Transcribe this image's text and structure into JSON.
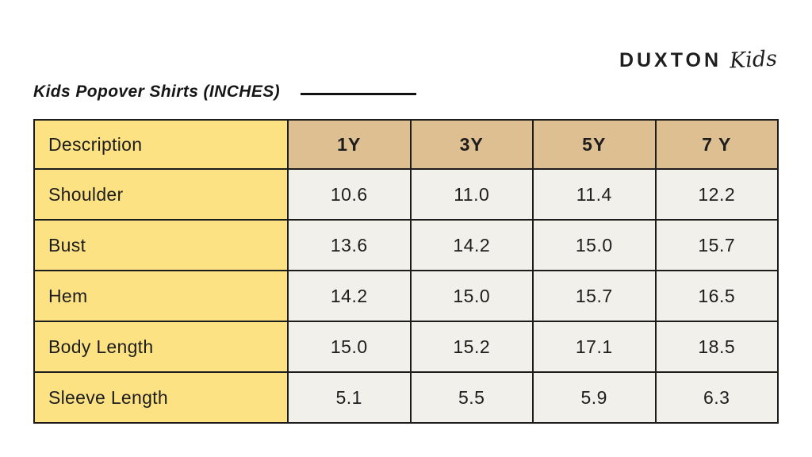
{
  "logo": {
    "brand": "DUXTON",
    "sub": "Kids"
  },
  "title": "Kids Popover Shirts (INCHES)",
  "table": {
    "header": [
      "Description",
      "1Y",
      "3Y",
      "5Y",
      "7 Y"
    ],
    "rows": [
      {
        "label": "Shoulder",
        "values": [
          "10.6",
          "11.0",
          "11.4",
          "12.2"
        ]
      },
      {
        "label": "Bust",
        "values": [
          "13.6",
          "14.2",
          "15.0",
          "15.7"
        ]
      },
      {
        "label": "Hem",
        "values": [
          "14.2",
          "15.0",
          "15.7",
          "16.5"
        ]
      },
      {
        "label": "Body Length",
        "values": [
          "15.0",
          "15.2",
          "17.1",
          "18.5"
        ]
      },
      {
        "label": "Sleeve Length",
        "values": [
          "5.1",
          "5.5",
          "5.9",
          "6.3"
        ]
      }
    ]
  },
  "colors": {
    "label_bg": "#fde283",
    "size_header_bg": "#ddbf92",
    "value_bg": "#f2f0ea",
    "border": "#1c1c1c",
    "text": "#1d1d1d"
  }
}
